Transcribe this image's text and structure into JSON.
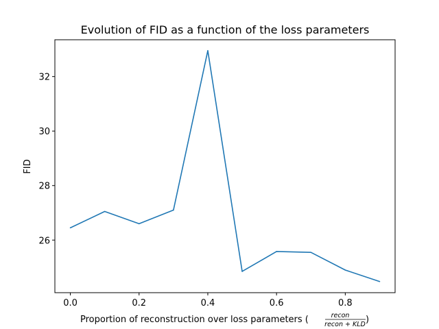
{
  "chart_data": {
    "type": "line",
    "title": "Evolution of FID as a function of the loss parameters",
    "xlabel": "Proportion of reconstruction over loss parameters (",
    "xlabel_fraction": {
      "numerator": "recon",
      "denominator": "recon + KLD"
    },
    "xlabel_close": ")",
    "ylabel": "FID",
    "xlim": [
      -0.045,
      0.945
    ],
    "ylim": [
      24.07,
      33.35
    ],
    "x_ticks": [
      0.0,
      0.2,
      0.4,
      0.6,
      0.8
    ],
    "x_tick_labels": [
      "0.0",
      "0.2",
      "0.4",
      "0.6",
      "0.8"
    ],
    "y_ticks": [
      26,
      28,
      30,
      32
    ],
    "y_tick_labels": [
      "26",
      "28",
      "30",
      "32"
    ],
    "grid": false,
    "series": [
      {
        "color": "#1f77b4",
        "x": [
          0.0,
          0.1,
          0.2,
          0.3,
          0.4,
          0.5,
          0.6,
          0.7,
          0.8,
          0.9
        ],
        "y": [
          26.45,
          27.05,
          26.6,
          27.1,
          32.95,
          24.85,
          25.58,
          25.55,
          24.9,
          24.48
        ]
      }
    ]
  }
}
